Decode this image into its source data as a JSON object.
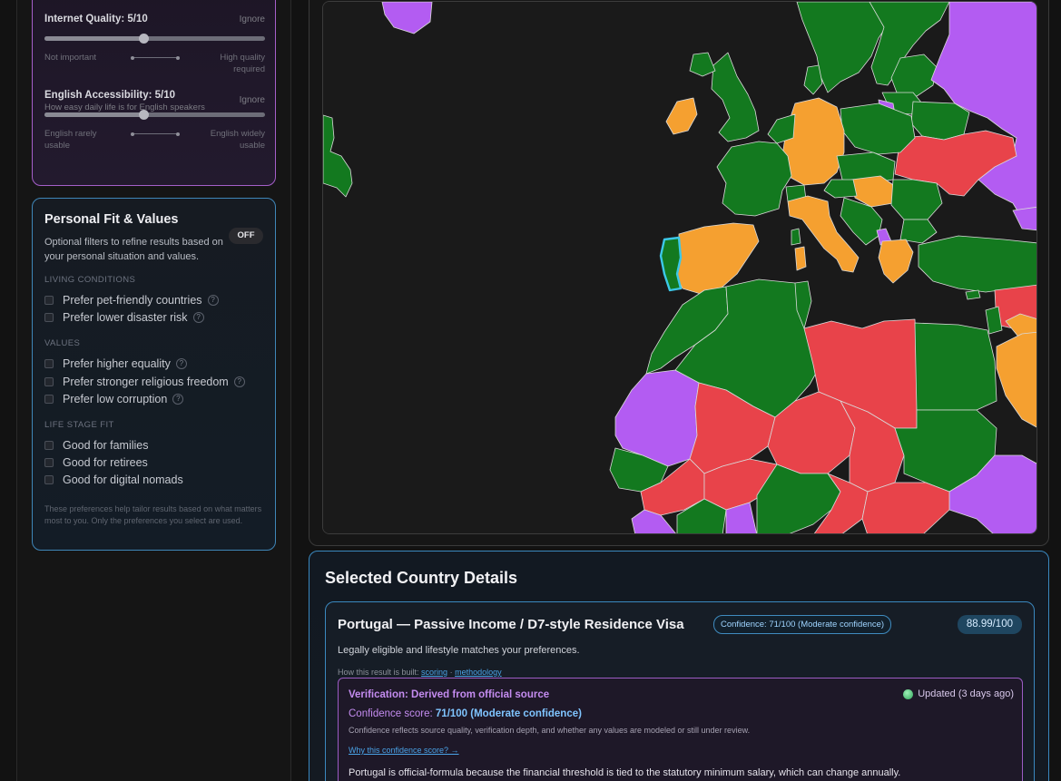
{
  "sliders": [
    {
      "title": "Internet Quality: 5/10",
      "ignore": "Ignore",
      "desc": "",
      "value": 5,
      "max": 10,
      "left_label": "Not important",
      "right_label_1": "High quality",
      "right_label_2": "required"
    },
    {
      "title": "English Accessibility: 5/10",
      "ignore": "Ignore",
      "desc": "How easy daily life is for English speakers",
      "value": 5,
      "max": 10,
      "left_label_1": "English rarely",
      "left_label_2": "usable",
      "right_label_1": "English widely",
      "right_label_2": "usable"
    }
  ],
  "personal_fit": {
    "title": "Personal Fit & Values",
    "description": "Optional filters to refine results based on your personal situation and values.",
    "toggle": "OFF",
    "sections": {
      "living": "LIVING CONDITIONS",
      "values": "VALUES",
      "life_stage": "LIFE STAGE FIT"
    },
    "options": {
      "pet_friendly": "Prefer pet-friendly countries",
      "disaster": "Prefer lower disaster risk",
      "equality": "Prefer higher equality",
      "religious": "Prefer stronger religious freedom",
      "corruption": "Prefer low corruption",
      "families": "Good for families",
      "retirees": "Good for retirees",
      "nomads": "Good for digital nomads"
    },
    "help_glyph": "?",
    "footnote": "These preferences help tailor results based on what matters most to you. Only the preferences you select are used."
  },
  "map": {
    "colors": {
      "green": "#13791f",
      "orange": "#f5a030",
      "red": "#e8434a",
      "purple": "#b35cf2",
      "sea": "#1a1a1a",
      "selected": "#3cc8e8"
    }
  },
  "details": {
    "title": "Selected Country Details",
    "result_title": "Portugal — Passive Income / D7-style Residence Visa",
    "confidence_badge": "Confidence: 71/100 (Moderate confidence)",
    "score": "88.99/100",
    "description": "Legally eligible and lifestyle matches your preferences.",
    "how_built_prefix": "How this result is built:",
    "scoring_link": "scoring",
    "separator": "·",
    "methodology_link": "methodology",
    "verification_title": "Verification: Derived from official source",
    "updated": "Updated (3 days ago)",
    "confidence_label": "Confidence score:",
    "confidence_value": "71/100 (Moderate confidence)",
    "confidence_explanation": "Confidence reflects source quality, verification depth, and whether any values are modeled or still under review.",
    "why_link": "Why this confidence score? →",
    "note": "Portugal is official-formula because the financial threshold is tied to the statutory minimum salary, which can change annually."
  }
}
